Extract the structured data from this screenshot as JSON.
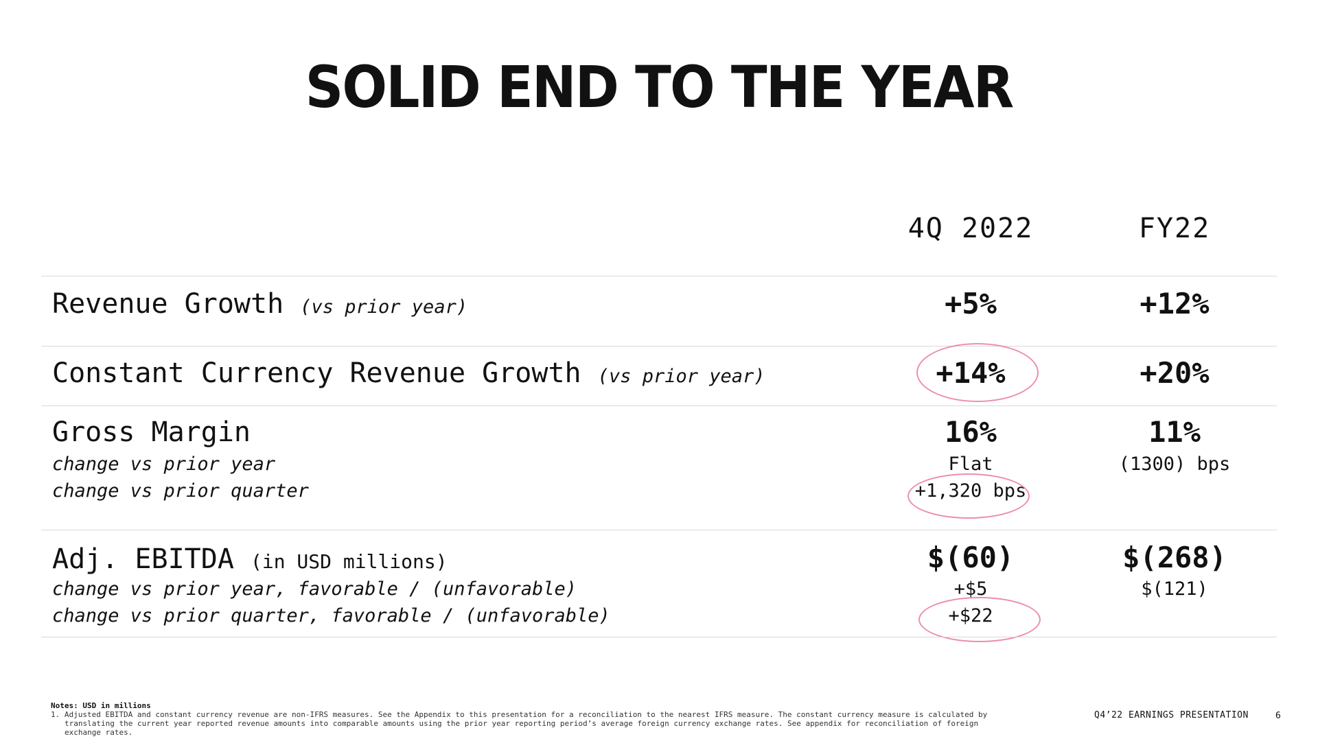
{
  "title": "SOLID END TO THE YEAR",
  "columns": {
    "c1": "4Q 2022",
    "c2": "FY22"
  },
  "rows": {
    "revenue": {
      "label": "Revenue Growth",
      "aside": "(vs prior year)",
      "q": "+5%",
      "fy": "+12%"
    },
    "cc_revenue": {
      "label": "Constant Currency Revenue Growth",
      "aside": "(vs prior year)",
      "q": "+14%",
      "fy": "+20%"
    },
    "gross_margin": {
      "label": "Gross Margin",
      "sub1": "change vs prior year",
      "sub2": "change vs prior quarter",
      "q": "16%",
      "fy": "11%",
      "q_sub1": "Flat",
      "q_sub2": "+1,320 bps",
      "fy_sub1": "(1300) bps"
    },
    "ebitda": {
      "label": "Adj. EBITDA",
      "aside": "(in USD millions)",
      "sub1": "change vs prior year, favorable / (unfavorable)",
      "sub2": "change vs prior quarter, favorable / (unfavorable)",
      "q": "$(60)",
      "fy": "$(268)",
      "q_sub1": "+$5",
      "q_sub2": "+$22",
      "fy_sub1": "$(121)"
    }
  },
  "notes": {
    "heading": "Notes: USD in millions",
    "item1": "1. Adjusted EBITDA and constant currency revenue are non-IFRS measures. See the Appendix to this presentation for a reconciliation to the nearest IFRS measure. The constant currency measure is calculated by translating the current year reported revenue amounts into comparable amounts using the prior year reporting period’s average foreign currency exchange rates. See appendix for reconciliation of foreign exchange rates."
  },
  "footer": {
    "label": "Q4’22 EARNINGS PRESENTATION",
    "page": "6"
  },
  "colors": {
    "highlight_circle": "#ec8db2",
    "rule": "#d9d9d9",
    "text": "#111111"
  }
}
